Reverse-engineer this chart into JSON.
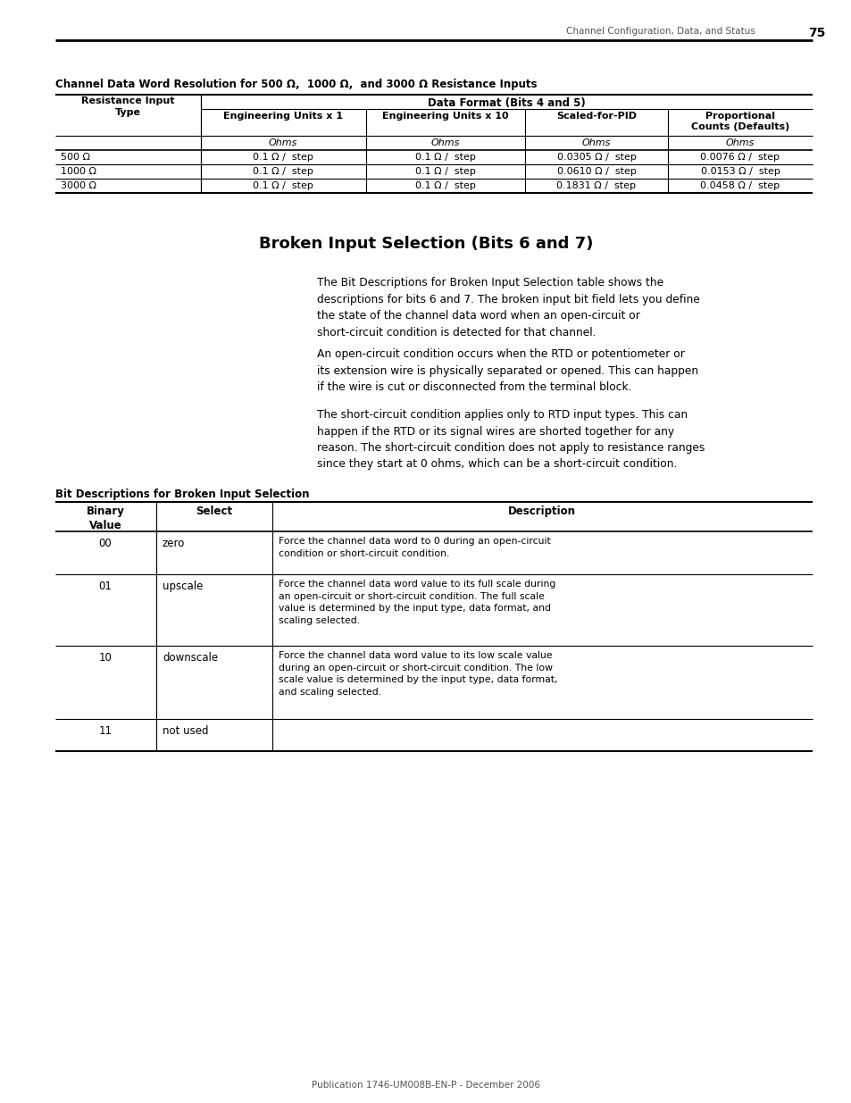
{
  "page_header_text": "Channel Configuration, Data, and Status",
  "page_number": "75",
  "section1_title": "Channel Data Word Resolution for 500 Ω,  1000 Ω,  and 3000 Ω Resistance Inputs",
  "table1_header_main": "Data Format (Bits 4 and 5)",
  "table1_col0_header": "Resistance Input\nType",
  "table1_col_headers": [
    "Engineering Units x 1",
    "Engineering Units x 10",
    "Scaled-for-PID",
    "Proportional\nCounts (Defaults)"
  ],
  "table1_subheaders": [
    "Ohms",
    "Ohms",
    "Ohms",
    "Ohms"
  ],
  "table1_rows": [
    [
      "500 Ω",
      "0.1 Ω /  step",
      "0.1 Ω /  step",
      "0.0305 Ω /  step",
      "0.0076 Ω /  step"
    ],
    [
      "1000 Ω",
      "0.1 Ω /  step",
      "0.1 Ω /  step",
      "0.0610 Ω /  step",
      "0.0153 Ω /  step"
    ],
    [
      "3000 Ω",
      "0.1 Ω /  step",
      "0.1 Ω /  step",
      "0.1831 Ω /  step",
      "0.0458 Ω /  step"
    ]
  ],
  "section2_title": "Broken Input Selection (Bits 6 and 7)",
  "para1": "The Bit Descriptions for Broken Input Selection table shows the\ndescriptions for bits 6 and 7. The broken input bit field lets you define\nthe state of the channel data word when an open-circuit or\nshort-circuit condition is detected for that channel.",
  "para2": "An open-circuit condition occurs when the RTD or potentiometer or\nits extension wire is physically separated or opened. This can happen\nif the wire is cut or disconnected from the terminal block.",
  "para3": "The short-circuit condition applies only to RTD input types. This can\nhappen if the RTD or its signal wires are shorted together for any\nreason. The short-circuit condition does not apply to resistance ranges\nsince they start at 0 ohms, which can be a short-circuit condition.",
  "table2_label": "Bit Descriptions for Broken Input Selection",
  "table2_col_headers": [
    "Binary\nValue",
    "Select",
    "Description"
  ],
  "table2_rows": [
    [
      "00",
      "zero",
      "Force the channel data word to 0 during an open-circuit\ncondition or short-circuit condition."
    ],
    [
      "01",
      "upscale",
      "Force the channel data word value to its full scale during\nan open-circuit or short-circuit condition. The full scale\nvalue is determined by the input type, data format, and\nscaling selected."
    ],
    [
      "10",
      "downscale",
      "Force the channel data word value to its low scale value\nduring an open-circuit or short-circuit condition. The low\nscale value is determined by the input type, data format,\nand scaling selected."
    ],
    [
      "11",
      "not used",
      ""
    ]
  ],
  "footer_text": "Publication 1746-UM008B-EN-P - December 2006",
  "bg_color": "#ffffff"
}
